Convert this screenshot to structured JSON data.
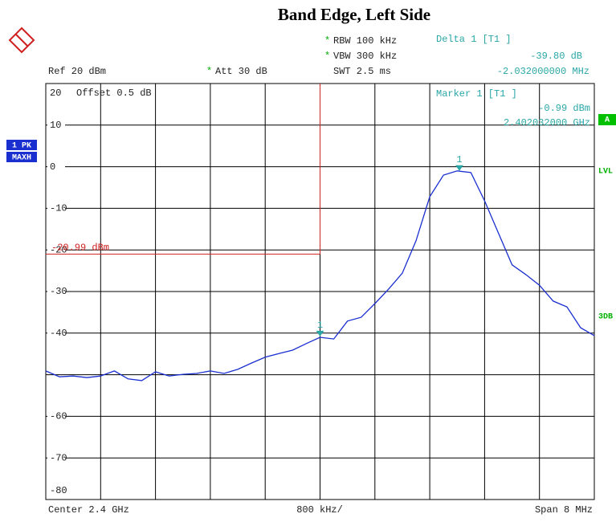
{
  "chart_data": {
    "type": "line",
    "title": "Band Edge, Left Side",
    "settings": [
      {
        "flag": "*",
        "text": "RBW 100 kHz"
      },
      {
        "flag": "*",
        "text": "VBW 300 kHz"
      },
      {
        "text": "SWT 2.5 ms"
      }
    ],
    "ref_level": "Ref 20 dBm",
    "attenuation": {
      "flag": "*",
      "text": "Att 30 dB"
    },
    "offset": "Offset 0.5 dB",
    "delta_marker": {
      "title": "Delta 1 [T1 ]",
      "level": "-39.80 dB",
      "frequency": "-2.032000000 MHz"
    },
    "marker_info": {
      "title": "Marker 1 [T1 ]",
      "level": "-0.99 dBm",
      "frequency": "2.402032000 GHz"
    },
    "trace_tags": [
      "1 PK",
      "MAXH"
    ],
    "side_tags": {
      "a": "A",
      "lvl": "LVL",
      "db3": "3DB"
    },
    "display_line": {
      "value": -20.99,
      "label": "-20.99 dBm",
      "color": "#d02020"
    },
    "frequency_line": 2.4,
    "markers": [
      {
        "label": "1",
        "x": 2.402032,
        "y": -0.99
      },
      {
        "label": "1",
        "x": 2.4,
        "y": -40.79
      }
    ],
    "footer": {
      "left": "Center 2.4 GHz",
      "middle": "800 kHz/",
      "right": "Span 8 MHz"
    },
    "xlim": [
      2.396,
      2.404
    ],
    "xticks": [
      2.396,
      2.3968,
      2.3976,
      2.3984,
      2.3992,
      2.4,
      2.4008,
      2.4016,
      2.4024,
      2.4032,
      2.404
    ],
    "ylim": [
      -80,
      20
    ],
    "yticks": [
      20,
      10,
      0,
      -10,
      -20,
      -30,
      -40,
      {
        "value": -50,
        "label": null
      },
      -60,
      -70,
      -80
    ],
    "grid": true,
    "x": [
      2.396,
      2.3962,
      2.3964,
      2.3966,
      2.3968,
      2.397,
      2.3972,
      2.3974,
      2.3976,
      2.3978,
      2.398,
      2.3982,
      2.3984,
      2.3986,
      2.3988,
      2.399,
      2.3992,
      2.3994,
      2.3996,
      2.3998,
      2.4,
      2.4002,
      2.4004,
      2.4006,
      2.4008,
      2.401,
      2.4012,
      2.4014,
      2.4016,
      2.4018,
      2.402,
      2.4022,
      2.4024,
      2.4026,
      2.4028,
      2.403,
      2.4032,
      2.4034,
      2.4036,
      2.4038,
      2.404
    ],
    "series": [
      {
        "name": "1 PK MAXH",
        "color": "#1a2fd0",
        "values": [
          -49.1,
          -50.5,
          -50.3,
          -50.7,
          -50.3,
          -49.1,
          -51.0,
          -51.4,
          -49.3,
          -50.3,
          -49.9,
          -49.7,
          -49.1,
          -49.7,
          -48.7,
          -47.2,
          -45.8,
          -44.9,
          -44.1,
          -42.5,
          -41.0,
          -41.4,
          -37.1,
          -36.2,
          -32.9,
          -29.4,
          -25.6,
          -17.8,
          -7.2,
          -2.0,
          -1.0,
          -1.4,
          -8.2,
          -15.9,
          -23.6,
          -25.9,
          -28.5,
          -32.3,
          -33.7,
          -38.7,
          -40.6
        ]
      }
    ]
  }
}
